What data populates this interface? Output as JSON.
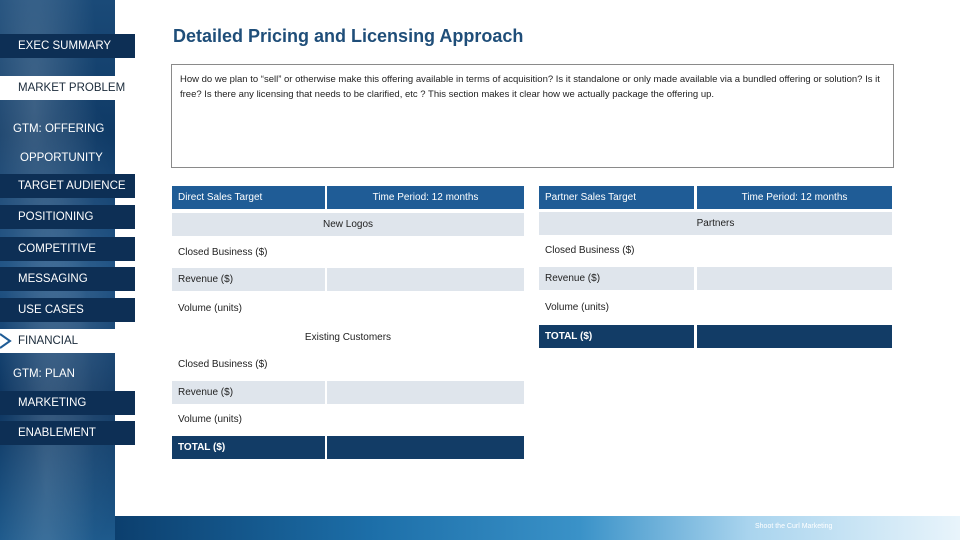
{
  "sidebar": {
    "items": [
      {
        "label": "EXEC SUMMARY"
      },
      {
        "label": "MARKET PROBLEM"
      },
      {
        "label": "GTM: OFFERING"
      },
      {
        "label": "OPPORTUNITY"
      },
      {
        "label": "TARGET AUDIENCE"
      },
      {
        "label": "POSITIONING"
      },
      {
        "label": "COMPETITIVE"
      },
      {
        "label": "MESSAGING"
      },
      {
        "label": "USE CASES"
      },
      {
        "label": "FINANCIAL"
      },
      {
        "label": "GTM: PLAN"
      },
      {
        "label": "MARKETING"
      },
      {
        "label": "ENABLEMENT"
      }
    ],
    "active_item": "FINANCIAL"
  },
  "header": {
    "title": "Detailed Pricing and Licensing Approach"
  },
  "description": "How do we plan to “sell” or otherwise make this offering available in terms of acquisition? Is it standalone or only made available via a bundled offering or solution? Is it free? Is there any licensing that needs to be clarified, etc ? This section makes it clear how we actually package the offering up.",
  "direct_table": {
    "target_label": "Direct Sales Target",
    "period_label": "Time Period: 12 months",
    "new_logos": {
      "section_label": "New Logos",
      "rows": [
        "Closed Business ($)",
        "Revenue ($)",
        "Volume (units)"
      ]
    },
    "existing": {
      "section_label": "Existing Customers",
      "rows": [
        "Closed Business ($)",
        "Revenue ($)",
        "Volume (units)"
      ]
    },
    "total_label": "TOTAL ($)"
  },
  "partner_table": {
    "target_label": "Partner Sales Target",
    "period_label": "Time Period: 12 months",
    "section_label": "Partners",
    "rows": [
      "Closed Business ($)",
      "Revenue ($)",
      "Volume (units)"
    ],
    "total_label": "TOTAL ($)"
  },
  "footer": {
    "text": "Shoot the Curl Marketing"
  },
  "colors": {
    "header_blue": "#1f5c96",
    "total_navy": "#123c66",
    "row_grey": "#dfe5ec",
    "title_blue": "#1f4e79"
  }
}
